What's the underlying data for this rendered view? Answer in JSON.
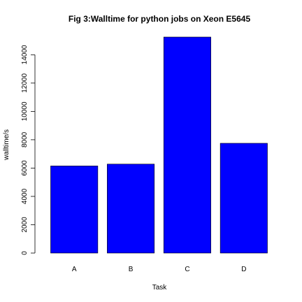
{
  "chart_data": {
    "type": "bar",
    "title": "Fig 3:Walltime for python jobs on Xeon E5645",
    "xlabel": "Task",
    "ylabel": "walltime/s",
    "categories": [
      "A",
      "B",
      "C",
      "D"
    ],
    "values": [
      6150,
      6280,
      15250,
      7750
    ],
    "ylim": [
      0,
      15250
    ],
    "yticks": [
      0,
      2000,
      4000,
      6000,
      8000,
      10000,
      12000,
      14000
    ],
    "ytick_labels": [
      "0",
      "2000",
      "4000",
      "6000",
      "8000",
      "10000",
      "12000",
      "14000"
    ],
    "bar_color": "#0000ff",
    "grid": false,
    "legend": "none"
  }
}
